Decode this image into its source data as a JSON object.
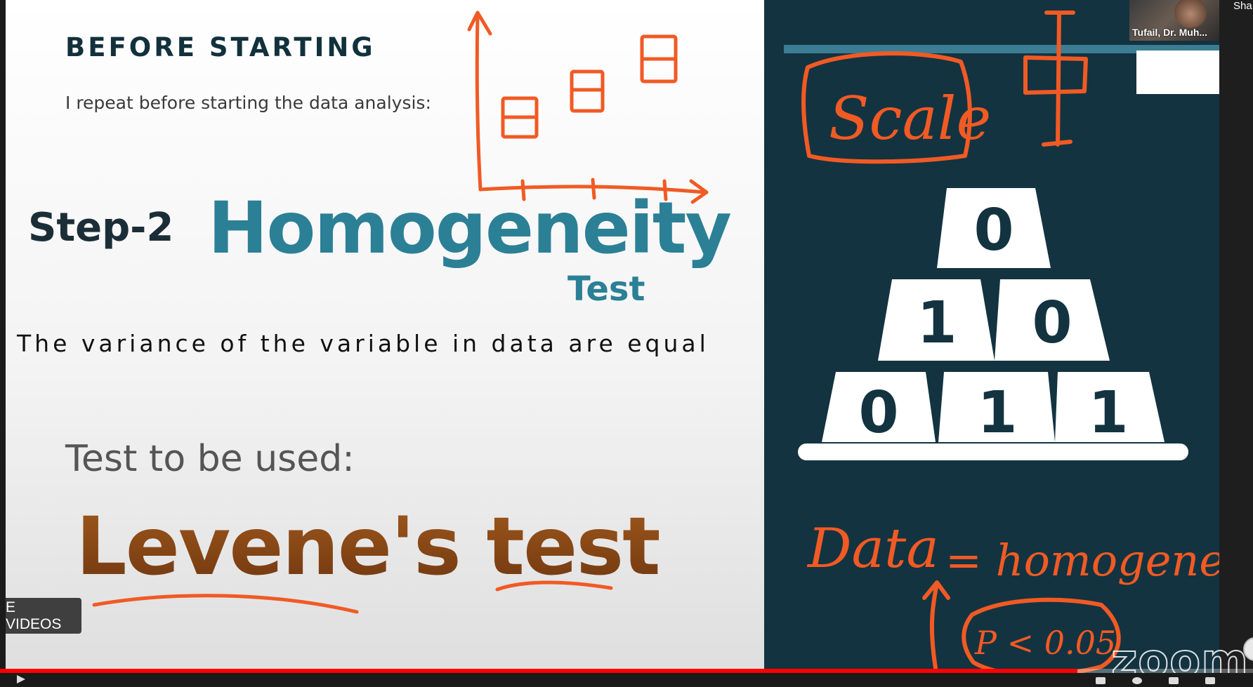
{
  "slide": {
    "heading": "BEFORE STARTING",
    "intro": "I repeat before starting the data analysis:",
    "step_label": "Step-2",
    "step_title": "Homogeneity",
    "step_subtitle": "Test",
    "definition": "The variance of the variable in data are equal",
    "test_prompt": "Test to be used:",
    "test_name": "Levene's test"
  },
  "board": {
    "scale_label": "Scale",
    "pyramid": {
      "top": [
        "0"
      ],
      "middle": [
        "1",
        "0"
      ],
      "bottom": [
        "0",
        "1",
        "1"
      ]
    },
    "note_left": "Data",
    "note_right": "= homogeneous",
    "note_bottom": "P < 0.05"
  },
  "player": {
    "more_videos_label": "E VIDEOS",
    "progress_percent": 86,
    "accent_color": "#ff0000",
    "watermark": "zoom"
  },
  "meeting": {
    "participant_name": "Tufail, Dr. Muh...",
    "share_label": "Sha"
  },
  "colors": {
    "ink": "#f15a24",
    "teal": "#2b8096",
    "board": "#133340"
  }
}
